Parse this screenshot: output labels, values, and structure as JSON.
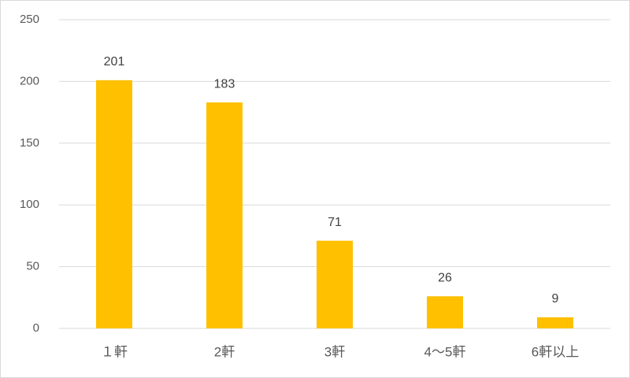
{
  "chart_data": {
    "type": "bar",
    "categories": [
      "１軒",
      "2軒",
      "3軒",
      "4～5軒",
      "6軒以上"
    ],
    "values": [
      201,
      183,
      71,
      26,
      9
    ],
    "color": "#ffc000",
    "ylim": [
      0,
      250
    ],
    "yticks": [
      0,
      50,
      100,
      150,
      200,
      250
    ],
    "grid": true
  }
}
